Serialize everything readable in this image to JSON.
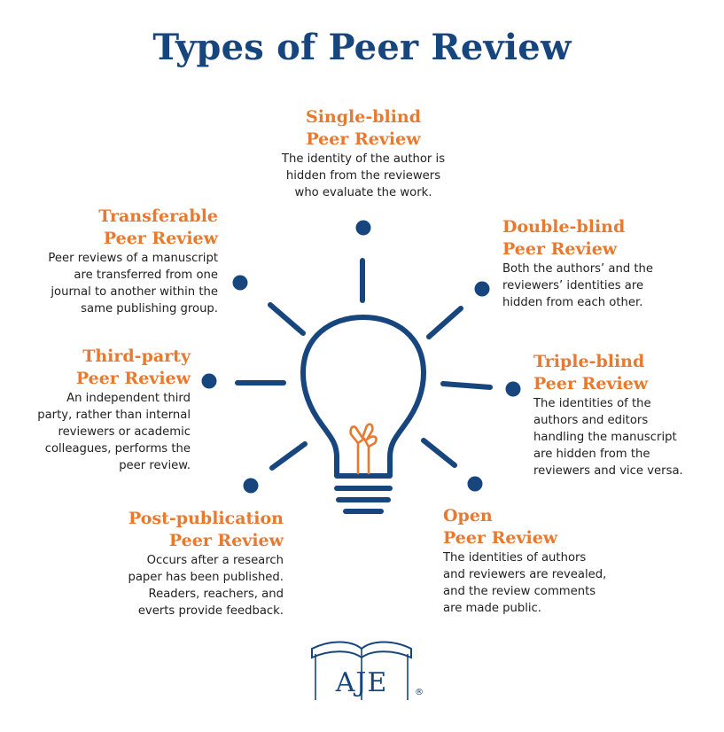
{
  "title": "Types of Peer Review",
  "colors": {
    "title": "#17457e",
    "heading": "#e8792e",
    "bulb": "#17457e",
    "filament": "#e8792e"
  },
  "types": {
    "single_blind": {
      "heading_1": "Single-blind",
      "heading_2": "Peer Review",
      "lines": [
        "The identity of the author is",
        "hidden from the reviewers",
        "who evaluate the work."
      ]
    },
    "double_blind": {
      "heading_1": "Double-blind",
      "heading_2": "Peer Review",
      "lines": [
        "Both the authors’ and the",
        "reviewers’ identities are",
        "hidden from each other."
      ]
    },
    "transferable": {
      "heading_1": "Transferable",
      "heading_2": "Peer Review",
      "lines": [
        "Peer reviews of a manuscript",
        "are transferred from one",
        "journal to another within the",
        "same publishing group."
      ]
    },
    "third_party": {
      "heading_1": "Third-party",
      "heading_2": "Peer Review",
      "lines": [
        "An independent third",
        "party, rather than internal",
        "reviewers or academic",
        "colleagues, performs the",
        "peer review."
      ]
    },
    "triple_blind": {
      "heading_1": "Triple-blind",
      "heading_2": "Peer Review",
      "lines": [
        "The identities of the",
        "authors and editors",
        "handling the manuscript",
        "are hidden from the",
        "reviewers and vice versa."
      ]
    },
    "post_publication": {
      "heading_1": "Post-publication",
      "heading_2": "Peer Review",
      "lines": [
        "Occurs after a research",
        "paper has been published.",
        "Readers, reachers, and",
        "everts provide feedback."
      ]
    },
    "open": {
      "heading_1": "Open",
      "heading_2": "Peer Review",
      "lines": [
        "The identities of authors",
        "and reviewers are revealed,",
        "and the review comments",
        "are made public."
      ]
    }
  },
  "logo": {
    "text": "AJE",
    "mark": "®"
  }
}
